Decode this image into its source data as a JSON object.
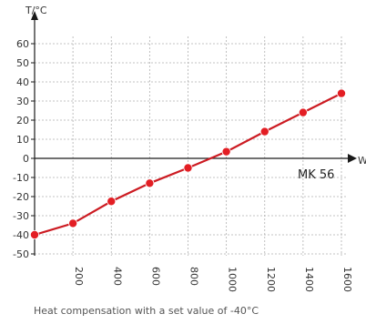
{
  "caption": "Heat compensation with a set value of -40°C",
  "chart_data": {
    "type": "line",
    "ylabel": "T/°C",
    "xlabel": "W",
    "series_label": "MK 56",
    "x_ticks": [
      200,
      400,
      600,
      800,
      1000,
      1200,
      1400,
      1600
    ],
    "y_ticks": [
      60,
      50,
      40,
      30,
      20,
      10,
      0,
      -10,
      -20,
      -30,
      -40,
      -50
    ],
    "xlim": [
      0,
      1600
    ],
    "ylim": [
      -50,
      65
    ],
    "grid": true,
    "series": [
      {
        "x": [
          0,
          200,
          400,
          600,
          800,
          1000,
          1200,
          1400,
          1600
        ],
        "values": [
          -40,
          -34,
          -22.5,
          -13,
          -5,
          3.5,
          14,
          24,
          34
        ]
      }
    ],
    "colors": {
      "line": "#cc1b22",
      "marker": "#e31e24",
      "axis": "#1a1a1a",
      "grid": "#b0b0b0"
    }
  }
}
